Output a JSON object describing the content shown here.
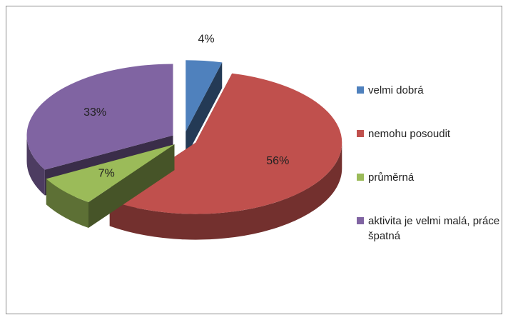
{
  "chart_data": {
    "type": "pie",
    "categories": [
      "velmi dobrá",
      "nemohu posoudit",
      "průměrná",
      "aktivita je velmi malá, práce špatná"
    ],
    "values": [
      4,
      56,
      7,
      33
    ],
    "value_labels": [
      "4%",
      "56%",
      "7%",
      "33%"
    ],
    "colors": [
      "#4f81bd",
      "#c0504d",
      "#9bbb59",
      "#8064a2"
    ],
    "legend": "right"
  }
}
